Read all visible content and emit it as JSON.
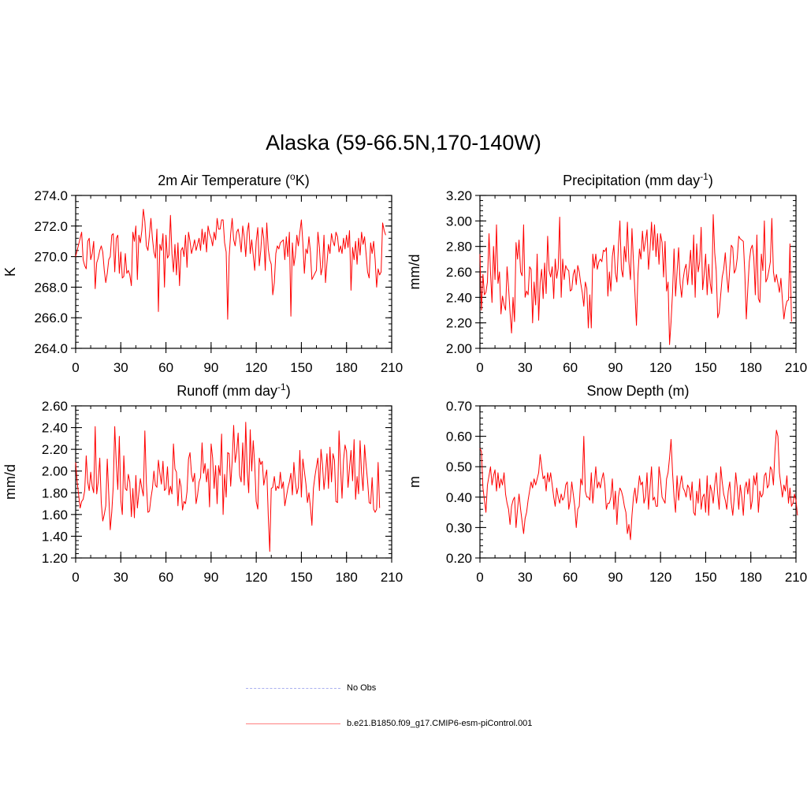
{
  "figure_title": "Alaska (59-66.5N,170-140W)",
  "legend": [
    {
      "label": "No Obs",
      "color": "#aab0f0",
      "style": "dashed"
    },
    {
      "label": "b.e21.B1850.f09_g17.CMIP6-esm-piControl.001",
      "color": "#ff8080",
      "style": "solid"
    }
  ],
  "series_color": "#ff0000",
  "chart_data": [
    {
      "type": "line",
      "title": "2m Air Temperature (",
      "title_sup": "o",
      "title_suffix": "K)",
      "ylabel": "K",
      "xlim": [
        0,
        210
      ],
      "ylim": [
        264.0,
        274.0
      ],
      "xticks": [
        0,
        30,
        60,
        90,
        120,
        150,
        180,
        210
      ],
      "xtick_labels": [
        "0",
        "30",
        "60",
        "90",
        "120",
        "150",
        "180",
        "210"
      ],
      "yticks": [
        264.0,
        266.0,
        268.0,
        270.0,
        272.0,
        274.0
      ],
      "ytick_labels": [
        "264.0",
        "266.0",
        "268.0",
        "270.0",
        "272.0",
        "274.0"
      ],
      "yminor_step": 0.4,
      "x_start": 0,
      "x_step": 1,
      "series": [
        {
          "name": "b.e21.B1850.f09_g17.CMIP6-esm-piControl.001",
          "values": [
            270.0,
            270.4,
            270.8,
            271.2,
            271.6,
            269.8,
            269.4,
            269.2,
            271.0,
            271.2,
            269.8,
            270.2,
            271.0,
            267.9,
            269.6,
            269.9,
            270.4,
            270.7,
            270.3,
            269.1,
            268.3,
            268.9,
            269.8,
            270.0,
            271.4,
            271.5,
            269.0,
            271.2,
            271.4,
            268.9,
            270.3,
            268.6,
            268.7,
            270.2,
            268.9,
            269.1,
            268.8,
            268.1,
            271.6,
            271.0,
            272.0,
            268.5,
            271.4,
            270.9,
            271.7,
            273.1,
            272.3,
            270.7,
            270.4,
            271.4,
            272.5,
            271.2,
            270.3,
            269.9,
            271.8,
            266.4,
            270.8,
            270.4,
            271.5,
            268.0,
            271.4,
            269.9,
            270.1,
            272.7,
            270.2,
            269.0,
            270.8,
            268.8,
            270.9,
            268.1,
            270.4,
            270.6,
            270.0,
            271.4,
            269.3,
            271.6,
            271.0,
            270.2,
            270.6,
            271.1,
            270.4,
            270.8,
            271.2,
            270.4,
            271.8,
            270.8,
            271.6,
            270.3,
            272.0,
            271.5,
            271.2,
            270.7,
            271.6,
            271.1,
            272.5,
            271.8,
            271.8,
            272.4,
            272.4,
            270.9,
            270.3,
            265.9,
            270.0,
            271.5,
            272.5,
            271.1,
            270.7,
            271.6,
            271.8,
            271.2,
            270.3,
            272.0,
            271.3,
            270.0,
            271.6,
            272.2,
            270.2,
            271.1,
            270.1,
            269.1,
            271.0,
            271.9,
            269.4,
            270.4,
            271.9,
            271.2,
            269.1,
            272.2,
            270.5,
            269.8,
            269.5,
            267.5,
            268.3,
            270.2,
            270.7,
            270.5,
            270.9,
            271.0,
            271.1,
            269.8,
            271.3,
            270.0,
            271.6,
            266.1,
            270.9,
            269.4,
            270.1,
            271.4,
            270.7,
            271.6,
            272.4,
            270.9,
            268.9,
            270.5,
            270.2,
            271.3,
            270.3,
            268.5,
            268.7,
            268.9,
            269.1,
            271.6,
            270.6,
            268.8,
            269.3,
            271.4,
            268.3,
            269.6,
            270.8,
            270.2,
            271.5,
            271.0,
            270.7,
            271.6,
            271.3,
            270.3,
            270.7,
            270.2,
            271.2,
            270.5,
            271.4,
            270.6,
            271.7,
            267.8,
            270.6,
            269.8,
            271.0,
            269.5,
            271.2,
            270.1,
            271.6,
            270.8,
            271.3,
            270.2,
            269.0,
            268.6,
            270.9,
            270.2,
            271.0,
            269.8,
            268.0,
            269.2,
            268.8,
            269.0,
            272.2,
            271.7,
            271.4
          ]
        }
      ]
    },
    {
      "type": "line",
      "title": "Precipitation (mm day",
      "title_sup": "-1",
      "title_suffix": ")",
      "ylabel": "mm/d",
      "xlim": [
        0,
        210
      ],
      "ylim": [
        2.0,
        3.2
      ],
      "xticks": [
        0,
        30,
        60,
        90,
        120,
        150,
        180,
        210
      ],
      "xtick_labels": [
        "0",
        "30",
        "60",
        "90",
        "120",
        "150",
        "180",
        "210"
      ],
      "yticks": [
        2.0,
        2.2,
        2.4,
        2.6,
        2.8,
        3.0,
        3.2
      ],
      "ytick_labels": [
        "2.00",
        "2.20",
        "2.40",
        "2.60",
        "2.80",
        "3.00",
        "3.20"
      ],
      "yminor_step": 0.04,
      "x_start": 0,
      "x_step": 1,
      "series": [
        {
          "name": "b.e21.B1850.f09_g17.CMIP6-esm-piControl.001",
          "values": [
            2.74,
            2.3,
            2.58,
            2.42,
            2.44,
            2.52,
            2.9,
            2.6,
            2.36,
            2.8,
            2.54,
            2.97,
            2.51,
            2.6,
            2.27,
            2.41,
            2.34,
            2.3,
            2.64,
            2.48,
            2.28,
            2.12,
            2.4,
            2.21,
            2.83,
            2.7,
            2.85,
            2.6,
            2.57,
            2.97,
            2.4,
            2.45,
            2.42,
            2.64,
            2.62,
            2.2,
            2.52,
            2.34,
            2.74,
            2.22,
            2.52,
            2.62,
            2.39,
            2.67,
            2.43,
            2.88,
            2.61,
            2.56,
            2.64,
            2.39,
            2.7,
            2.55,
            2.63,
            3.03,
            2.4,
            2.7,
            2.54,
            2.65,
            2.62,
            2.61,
            2.45,
            2.46,
            2.58,
            2.62,
            2.5,
            2.65,
            2.6,
            2.51,
            2.44,
            2.33,
            2.52,
            2.47,
            2.16,
            2.42,
            2.16,
            2.74,
            2.63,
            2.74,
            2.62,
            2.68,
            2.7,
            2.68,
            2.77,
            2.76,
            2.79,
            2.41,
            2.6,
            2.45,
            2.72,
            2.81,
            2.59,
            2.52,
            2.8,
            3.0,
            2.62,
            2.56,
            2.8,
            2.68,
            2.99,
            2.68,
            2.54,
            2.94,
            2.68,
            2.43,
            2.18,
            2.58,
            2.78,
            2.7,
            2.92,
            2.76,
            2.84,
            2.93,
            2.62,
            2.77,
            2.99,
            2.77,
            2.97,
            2.72,
            2.9,
            2.66,
            2.9,
            2.83,
            2.56,
            2.84,
            2.45,
            2.52,
            2.03,
            2.21,
            2.44,
            2.78,
            2.41,
            2.6,
            2.79,
            2.51,
            2.4,
            2.54,
            2.62,
            2.66,
            2.5,
            2.63,
            2.77,
            2.5,
            2.89,
            2.4,
            2.82,
            2.6,
            2.68,
            2.95,
            2.46,
            2.58,
            2.74,
            2.42,
            2.66,
            2.51,
            2.43,
            3.05,
            2.75,
            2.61,
            2.24,
            2.28,
            2.42,
            2.56,
            2.62,
            2.75,
            2.57,
            2.44,
            2.63,
            2.81,
            2.79,
            2.59,
            2.62,
            2.71,
            2.88,
            2.86,
            2.85,
            2.84,
            2.59,
            2.23,
            2.47,
            2.68,
            2.78,
            2.81,
            2.71,
            2.42,
            2.89,
            2.39,
            2.36,
            2.74,
            2.61,
            3.0,
            2.52,
            2.55,
            2.61,
            2.68,
            3.02,
            2.6,
            2.52,
            2.58,
            2.51,
            2.44,
            2.55,
            2.38,
            2.23,
            2.32,
            2.37,
            2.38,
            2.82,
            2.21
          ]
        }
      ]
    },
    {
      "type": "line",
      "title": "Runoff (mm day",
      "title_sup": "-1",
      "title_suffix": ")",
      "ylabel": "mm/d",
      "xlim": [
        0,
        210
      ],
      "ylim": [
        1.2,
        2.6
      ],
      "xticks": [
        0,
        30,
        60,
        90,
        120,
        150,
        180,
        210
      ],
      "xtick_labels": [
        "0",
        "30",
        "60",
        "90",
        "120",
        "150",
        "180",
        "210"
      ],
      "yticks": [
        1.2,
        1.4,
        1.6,
        1.8,
        2.0,
        2.2,
        2.4,
        2.6
      ],
      "ytick_labels": [
        "1.20",
        "1.40",
        "1.60",
        "1.80",
        "2.00",
        "2.20",
        "2.40",
        "2.60"
      ],
      "yminor_step": 0.04,
      "x_start": 0,
      "x_step": 1,
      "series": [
        {
          "name": "b.e21.B1850.f09_g17.CMIP6-esm-piControl.001",
          "values": [
            2.08,
            1.9,
            1.78,
            1.66,
            1.72,
            1.74,
            1.82,
            2.14,
            1.9,
            1.82,
            1.99,
            1.86,
            1.8,
            2.41,
            1.79,
            1.9,
            2.12,
            1.71,
            1.54,
            1.6,
            1.68,
            2.11,
            1.78,
            1.46,
            1.62,
            1.86,
            2.41,
            2.06,
            1.83,
            2.32,
            1.73,
            1.6,
            2.14,
            1.84,
            1.82,
            1.97,
            1.9,
            1.58,
            1.84,
            1.57,
            1.96,
            1.66,
            1.8,
            1.93,
            1.84,
            1.77,
            2.37,
            1.89,
            1.62,
            1.63,
            1.75,
            1.84,
            2.0,
            1.87,
            1.85,
            2.1,
            1.98,
            1.88,
            2.09,
            1.82,
            1.84,
            2.04,
            1.78,
            1.86,
            1.79,
            2.25,
            2.02,
            1.99,
            1.68,
            1.93,
            1.86,
            1.64,
            1.72,
            1.7,
            1.81,
            2.11,
            2.17,
            1.97,
            1.9,
            1.98,
            1.7,
            1.78,
            1.9,
            1.94,
            2.26,
            1.98,
            2.07,
            1.9,
            2.02,
            1.67,
            2.25,
            2.12,
            1.84,
            2.05,
            1.7,
            2.05,
            1.96,
            2.34,
            1.6,
            1.97,
            1.76,
            2.17,
            2.16,
            1.86,
            2.09,
            2.42,
            2.08,
            2.18,
            2.35,
            1.96,
            1.9,
            2.26,
            1.87,
            2.45,
            2.0,
            1.8,
            2.38,
            2.0,
            2.28,
            2.06,
            1.72,
            1.65,
            2.12,
            2.06,
            2.09,
            1.87,
            1.95,
            2.01,
            1.59,
            1.26,
            1.84,
            1.85,
            1.95,
            1.82,
            1.86,
            1.84,
            1.99,
            1.84,
            1.9,
            1.68,
            1.76,
            1.84,
            1.9,
            1.98,
            1.78,
            2.08,
            1.9,
            1.79,
            1.85,
            2.19,
            1.76,
            2.11,
            2.0,
            1.88,
            1.71,
            1.8,
            1.67,
            1.5,
            1.84,
            1.95,
            2.04,
            2.12,
            1.82,
            2.2,
            2.06,
            1.83,
            1.97,
            2.16,
            1.84,
            2.22,
            1.9,
            2.16,
            2.1,
            1.72,
            1.71,
            2.37,
            2.04,
            1.75,
            2.1,
            2.24,
            2.18,
            1.85,
            2.03,
            2.19,
            1.91,
            2.29,
            1.74,
            1.95,
            1.79,
            2.28,
            1.98,
            1.82,
            2.24,
            2.06,
            1.91,
            1.71,
            1.7,
            1.94,
            1.65,
            1.62,
            1.65,
            2.08,
            1.66
          ]
        }
      ]
    },
    {
      "type": "line",
      "title": "Snow Depth (m)",
      "title_sup": "",
      "title_suffix": "",
      "ylabel": "m",
      "xlim": [
        0,
        210
      ],
      "ylim": [
        0.2,
        0.7
      ],
      "xticks": [
        0,
        30,
        60,
        90,
        120,
        150,
        180,
        210
      ],
      "xtick_labels": [
        "0",
        "30",
        "60",
        "90",
        "120",
        "150",
        "180",
        "210"
      ],
      "yticks": [
        0.2,
        0.3,
        0.4,
        0.5,
        0.6,
        0.7
      ],
      "ytick_labels": [
        "0.20",
        "0.30",
        "0.40",
        "0.50",
        "0.60",
        "0.70"
      ],
      "yminor_step": 0.02,
      "x_start": 0,
      "x_step": 1,
      "series": [
        {
          "name": "b.e21.B1850.f09_g17.CMIP6-esm-piControl.001",
          "values": [
            0.56,
            0.55,
            0.43,
            0.39,
            0.35,
            0.44,
            0.47,
            0.5,
            0.44,
            0.47,
            0.49,
            0.42,
            0.48,
            0.43,
            0.46,
            0.44,
            0.48,
            0.41,
            0.38,
            0.36,
            0.31,
            0.37,
            0.39,
            0.4,
            0.3,
            0.36,
            0.41,
            0.36,
            0.32,
            0.28,
            0.33,
            0.35,
            0.39,
            0.42,
            0.45,
            0.43,
            0.46,
            0.44,
            0.46,
            0.48,
            0.54,
            0.5,
            0.46,
            0.47,
            0.42,
            0.48,
            0.45,
            0.48,
            0.44,
            0.4,
            0.37,
            0.43,
            0.4,
            0.38,
            0.41,
            0.39,
            0.4,
            0.44,
            0.45,
            0.36,
            0.39,
            0.45,
            0.41,
            0.37,
            0.3,
            0.36,
            0.37,
            0.46,
            0.44,
            0.6,
            0.42,
            0.4,
            0.4,
            0.39,
            0.48,
            0.38,
            0.44,
            0.5,
            0.43,
            0.45,
            0.43,
            0.46,
            0.48,
            0.44,
            0.36,
            0.38,
            0.38,
            0.4,
            0.46,
            0.36,
            0.42,
            0.31,
            0.4,
            0.43,
            0.42,
            0.4,
            0.37,
            0.35,
            0.28,
            0.31,
            0.26,
            0.34,
            0.4,
            0.43,
            0.38,
            0.42,
            0.47,
            0.44,
            0.45,
            0.38,
            0.4,
            0.48,
            0.36,
            0.43,
            0.5,
            0.39,
            0.4,
            0.37,
            0.37,
            0.5,
            0.46,
            0.4,
            0.39,
            0.38,
            0.46,
            0.48,
            0.53,
            0.59,
            0.48,
            0.4,
            0.35,
            0.47,
            0.39,
            0.44,
            0.47,
            0.43,
            0.42,
            0.4,
            0.44,
            0.43,
            0.39,
            0.45,
            0.35,
            0.34,
            0.42,
            0.38,
            0.46,
            0.36,
            0.4,
            0.41,
            0.35,
            0.47,
            0.34,
            0.44,
            0.42,
            0.38,
            0.44,
            0.48,
            0.41,
            0.36,
            0.5,
            0.45,
            0.41,
            0.39,
            0.36,
            0.42,
            0.45,
            0.38,
            0.34,
            0.4,
            0.48,
            0.43,
            0.36,
            0.44,
            0.4,
            0.34,
            0.43,
            0.45,
            0.41,
            0.46,
            0.36,
            0.39,
            0.47,
            0.44,
            0.48,
            0.35,
            0.42,
            0.4,
            0.41,
            0.47,
            0.48,
            0.43,
            0.44,
            0.5,
            0.49,
            0.44,
            0.55,
            0.62,
            0.6,
            0.48,
            0.44,
            0.4,
            0.44,
            0.42,
            0.47,
            0.38,
            0.43,
            0.37,
            0.38,
            0.41,
            0.39,
            0.34
          ]
        }
      ]
    }
  ]
}
